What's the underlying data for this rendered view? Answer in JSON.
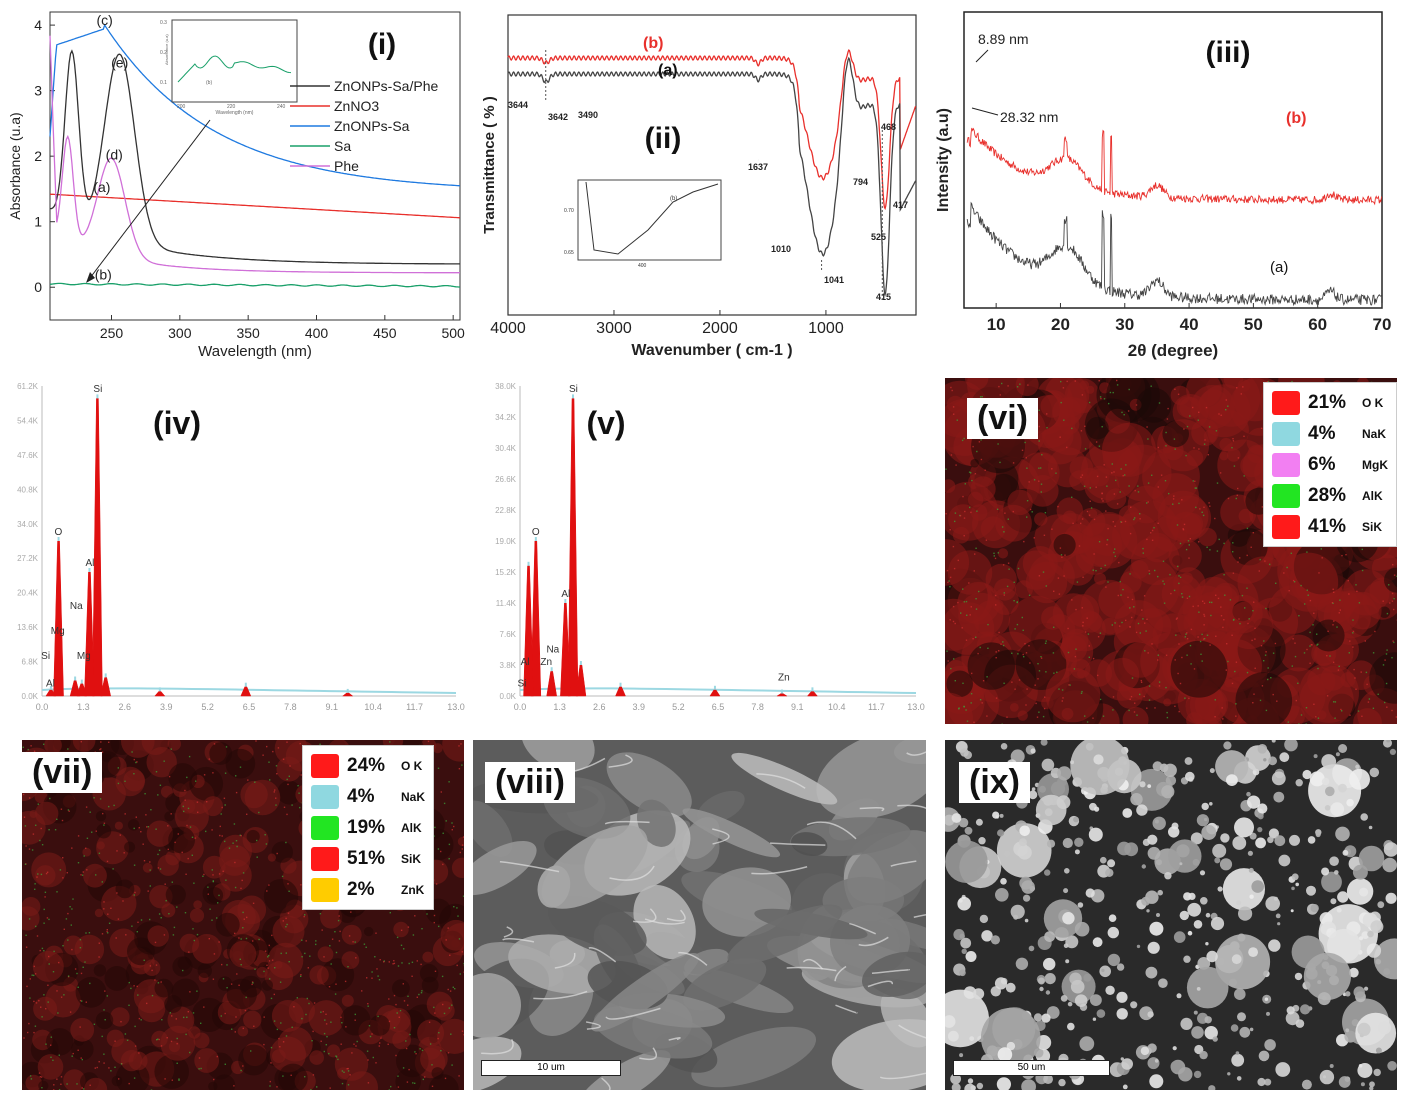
{
  "panels": {
    "i": {
      "label": "(i)",
      "xlabel": "Wavelength (nm)",
      "ylabel": "Absorbance (u.a)",
      "xlim": [
        205,
        505
      ],
      "ylim": [
        -0.5,
        4.2
      ],
      "xticks": [
        250,
        300,
        350,
        400,
        450,
        500
      ],
      "yticks": [
        0,
        1,
        2,
        3,
        4
      ],
      "legend": [
        {
          "name": "ZnONPs-Sa/Phe",
          "color": "#333333"
        },
        {
          "name": "ZnNO3",
          "color": "#e8302c"
        },
        {
          "name": "ZnONPs-Sa",
          "color": "#1f7ae0"
        },
        {
          "name": "Sa",
          "color": "#1aa06a"
        },
        {
          "name": "Phe",
          "color": "#d070d8"
        }
      ],
      "curve_labels": [
        {
          "text": "(c)",
          "x": 245,
          "y": 4.0
        },
        {
          "text": "(e)",
          "x": 256,
          "y": 3.35
        },
        {
          "text": "(d)",
          "x": 252,
          "y": 1.95
        },
        {
          "text": "(a)",
          "x": 243,
          "y": 1.45
        },
        {
          "text": "(b)",
          "x": 244,
          "y": 0.12
        }
      ],
      "inset": {
        "xlabel": "Wavelength (nm)",
        "ylabel": "Absorbance (u.a)",
        "label": "(b)",
        "xticks": [
          "200",
          "220",
          "240"
        ],
        "yticks": [
          "0.3",
          "0.2",
          "0.1"
        ]
      }
    },
    "ii": {
      "label": "(ii)",
      "xlabel": "Wavenumber ( cm-1 )",
      "ylabel": "Transmittance ( % )",
      "xlim": [
        4000,
        150
      ],
      "xticks": [
        4000,
        3000,
        2000,
        1000
      ],
      "series_labels": [
        {
          "text": "(b)",
          "color": "#e8302c"
        },
        {
          "text": "(a)",
          "color": "#111111"
        }
      ],
      "peaks": [
        "3644",
        "3642",
        "3490",
        "1637",
        "1010",
        "1041",
        "794",
        "525",
        "468",
        "417",
        "415"
      ],
      "inset": {
        "label": "(b)",
        "yticks": [
          "0.70",
          "0.65"
        ],
        "xtick": "400"
      }
    },
    "iii": {
      "label": "(iii)",
      "xlabel": "2θ (degree)",
      "ylabel": "Intensity (a.u)",
      "xlim": [
        5,
        70
      ],
      "xticks": [
        10,
        20,
        30,
        40,
        50,
        60,
        70
      ],
      "series_labels": [
        {
          "text": "(b)",
          "color": "#e8302c"
        },
        {
          "text": "(a)",
          "color": "#111111"
        }
      ],
      "annotations": [
        "8.89 nm",
        "28.32 nm"
      ]
    },
    "iv": {
      "label": "(iv)",
      "xticks": [
        "0.0",
        "1.3",
        "2.6",
        "3.9",
        "5.2",
        "6.5",
        "7.8",
        "9.1",
        "10.4",
        "11.7",
        "13.0"
      ],
      "yticks": [
        "0.0K",
        "6.8K",
        "13.6K",
        "20.4K",
        "27.2K",
        "34.0K",
        "40.8K",
        "47.6K",
        "54.4K",
        "61.2K"
      ],
      "peak_labels": [
        "Si",
        "O",
        "Al",
        "Na",
        "Mg",
        "Mg",
        "Si",
        "Al"
      ]
    },
    "v": {
      "label": "(v)",
      "xticks": [
        "0.0",
        "1.3",
        "2.6",
        "3.9",
        "5.2",
        "6.5",
        "7.8",
        "9.1",
        "10.4",
        "11.7",
        "13.0"
      ],
      "yticks": [
        "0.0K",
        "3.8K",
        "7.6K",
        "11.4K",
        "15.2K",
        "19.0K",
        "22.8K",
        "26.6K",
        "30.4K",
        "34.2K",
        "38.0K"
      ],
      "peak_labels": [
        "Si",
        "O",
        "Al",
        "Na",
        "Zn",
        "Al",
        "Si",
        "Zn"
      ]
    },
    "vi": {
      "label": "(vi)",
      "legend": [
        {
          "pct": "21%",
          "el": "O K",
          "color": "#ff1a1a"
        },
        {
          "pct": "4%",
          "el": "NaK",
          "color": "#8fd8e0"
        },
        {
          "pct": "6%",
          "el": "MgK",
          "color": "#f27ff2"
        },
        {
          "pct": "28%",
          "el": "AlK",
          "color": "#22e522"
        },
        {
          "pct": "41%",
          "el": "SiK",
          "color": "#ff1a1a"
        }
      ]
    },
    "vii": {
      "label": "(vii)",
      "legend": [
        {
          "pct": "24%",
          "el": "O K",
          "color": "#ff1a1a"
        },
        {
          "pct": "4%",
          "el": "NaK",
          "color": "#8fd8e0"
        },
        {
          "pct": "19%",
          "el": "AlK",
          "color": "#22e522"
        },
        {
          "pct": "51%",
          "el": "SiK",
          "color": "#ff1a1a"
        },
        {
          "pct": "2%",
          "el": "ZnK",
          "color": "#ffcc00"
        }
      ]
    },
    "viii": {
      "label": "(viii)",
      "scale": "10 um"
    },
    "ix": {
      "label": "(ix)",
      "scale": "50 um"
    }
  }
}
